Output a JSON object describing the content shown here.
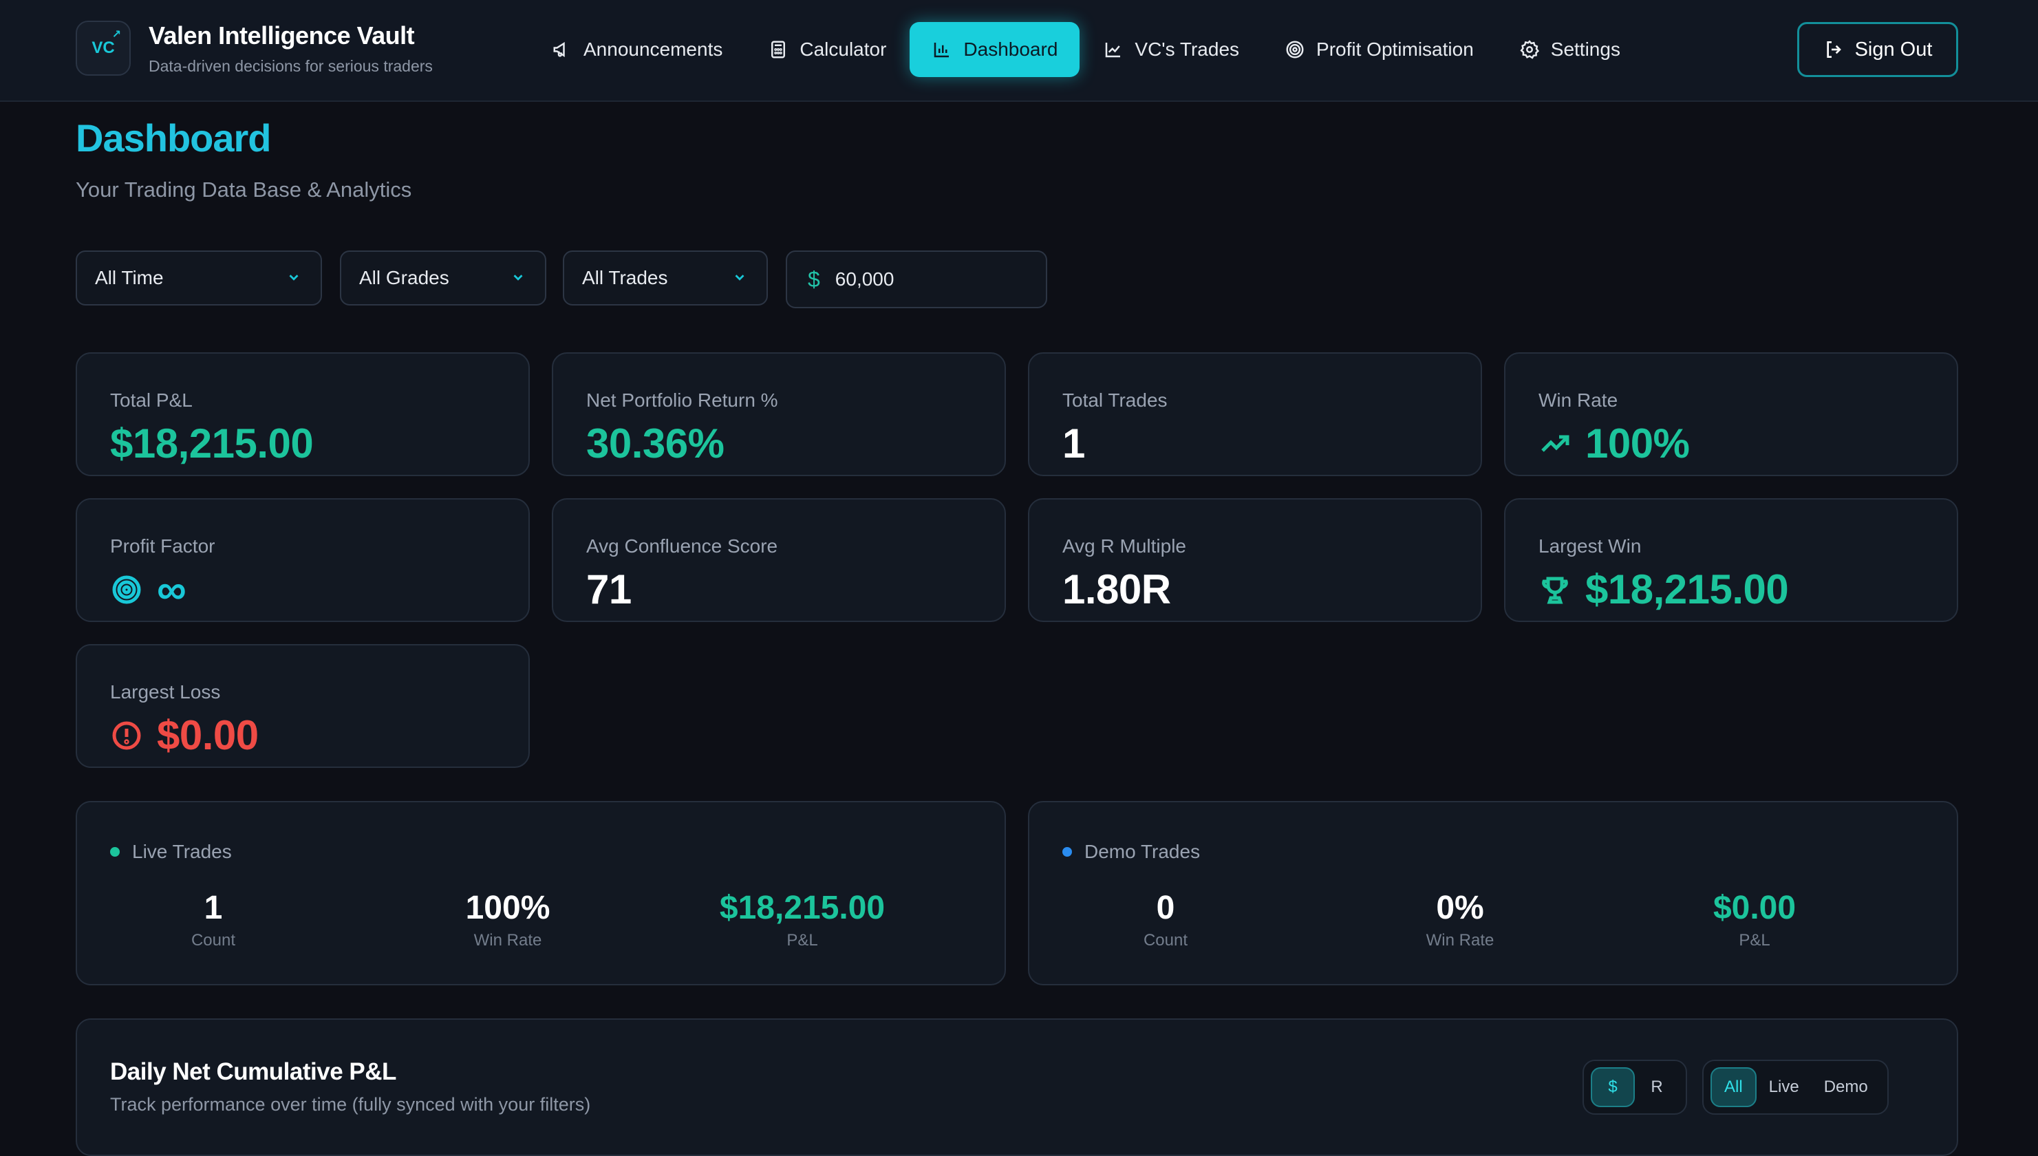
{
  "brand": {
    "logo_text": "VC",
    "title": "Valen Intelligence Vault",
    "subtitle": "Data-driven decisions for serious traders"
  },
  "nav": {
    "items": [
      {
        "label": "Announcements",
        "icon": "megaphone-icon"
      },
      {
        "label": "Calculator",
        "icon": "calculator-icon"
      },
      {
        "label": "Dashboard",
        "icon": "bar-chart-icon",
        "active": true
      },
      {
        "label": "VC's Trades",
        "icon": "line-chart-icon"
      },
      {
        "label": "Profit Optimisation",
        "icon": "target-icon"
      },
      {
        "label": "Settings",
        "icon": "gear-icon"
      }
    ],
    "sign_out": "Sign Out"
  },
  "page": {
    "title": "Dashboard",
    "subtitle": "Your Trading Data Base & Analytics"
  },
  "filters": {
    "period": "All Time",
    "grades": "All Grades",
    "trades": "All Trades",
    "account_size": "60,000",
    "currency_symbol": "$"
  },
  "metrics": {
    "total_pnl": {
      "label": "Total P&L",
      "value": "$18,215.00"
    },
    "net_return": {
      "label": "Net Portfolio Return %",
      "value": "30.36%"
    },
    "total_trades": {
      "label": "Total Trades",
      "value": "1"
    },
    "win_rate": {
      "label": "Win Rate",
      "value": "100%"
    },
    "profit_factor": {
      "label": "Profit Factor",
      "value": "∞"
    },
    "avg_confluence": {
      "label": "Avg Confluence Score",
      "value": "71"
    },
    "avg_r": {
      "label": "Avg R Multiple",
      "value": "1.80R"
    },
    "largest_win": {
      "label": "Largest Win",
      "value": "$18,215.00"
    },
    "largest_loss": {
      "label": "Largest Loss",
      "value": "$0.00"
    }
  },
  "live_trades": {
    "title": "Live Trades",
    "count": "1",
    "count_label": "Count",
    "win_rate": "100%",
    "win_rate_label": "Win Rate",
    "pnl": "$18,215.00",
    "pnl_label": "P&L"
  },
  "demo_trades": {
    "title": "Demo Trades",
    "count": "0",
    "count_label": "Count",
    "win_rate": "0%",
    "win_rate_label": "Win Rate",
    "pnl": "$0.00",
    "pnl_label": "P&L"
  },
  "chart_section": {
    "title": "Daily Net Cumulative P&L",
    "subtitle": "Track performance over time (fully synced with your filters)",
    "unit_toggle": [
      "$",
      "R"
    ],
    "unit_selected": "$",
    "account_toggle": [
      "All",
      "Live",
      "Demo"
    ],
    "account_selected": "All"
  },
  "colors": {
    "accent": "#19cfdc",
    "positive": "#1cc49c",
    "negative": "#ef4b45",
    "live_dot": "#1cc49c",
    "demo_dot": "#2a8cf0"
  }
}
